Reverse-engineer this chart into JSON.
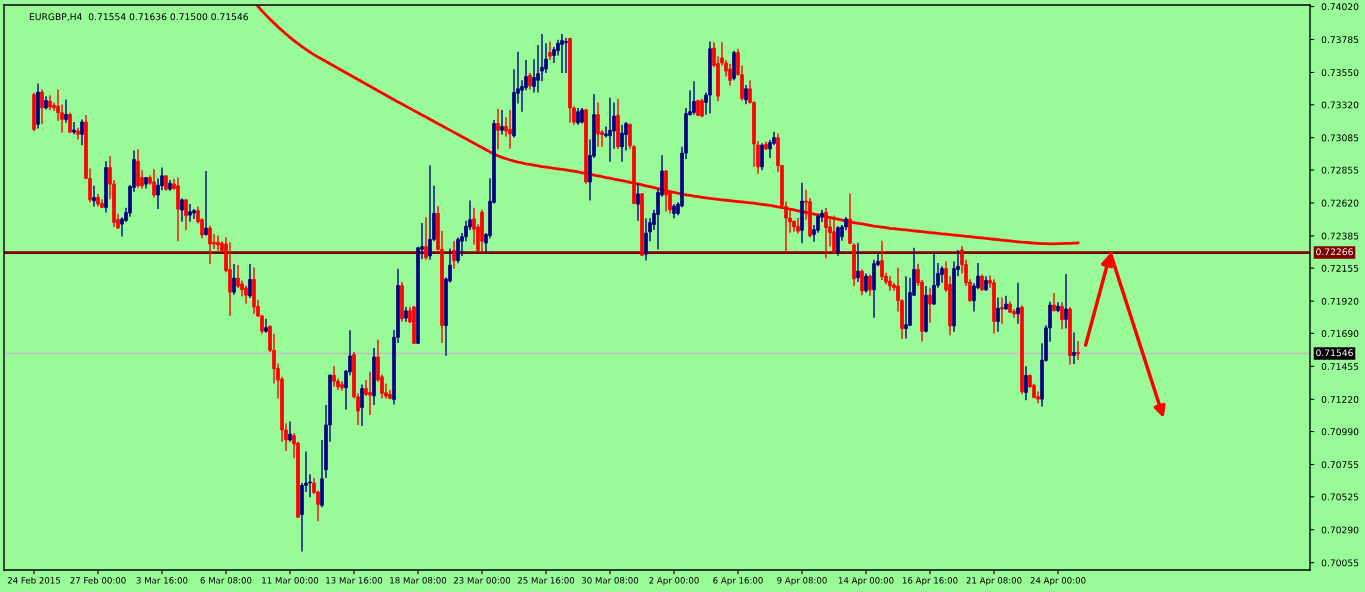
{
  "chart_data": {
    "type": "candlestick",
    "title": "EURGBP,H4  0.71554 0.71636 0.71500 0.71546",
    "categories": [
      "24 Feb 2015",
      null,
      null,
      null,
      null,
      null,
      null,
      null,
      null,
      null,
      null,
      null,
      null,
      null,
      null,
      null,
      "27 Feb 00:00",
      null,
      null,
      null,
      null,
      null,
      null,
      null,
      null,
      null,
      null,
      null,
      null,
      null,
      null,
      null,
      "3 Mar 16:00",
      null,
      null,
      null,
      null,
      null,
      null,
      null,
      null,
      null,
      null,
      null,
      null,
      null,
      null,
      null,
      "6 Mar 08:00",
      null,
      null,
      null,
      null,
      null,
      null,
      null,
      null,
      null,
      null,
      null,
      null,
      null,
      null,
      null,
      "11 Mar 00:00",
      null,
      null,
      null,
      null,
      null,
      null,
      null,
      null,
      null,
      null,
      null,
      null,
      null,
      null,
      null,
      "13 Mar 16:00",
      null,
      null,
      null,
      null,
      null,
      null,
      null,
      null,
      null,
      null,
      null,
      null,
      null,
      null,
      null,
      "18 Mar 08:00",
      null,
      null,
      null,
      null,
      null,
      null,
      null,
      null,
      null,
      null,
      null,
      null,
      null,
      null,
      null,
      "23 Mar 00:00",
      null,
      null,
      null,
      null,
      null,
      null,
      null,
      null,
      null,
      null,
      null,
      null,
      null,
      null,
      null,
      "25 Mar 16:00",
      null,
      null,
      null,
      null,
      null,
      null,
      null,
      null,
      null,
      null,
      null,
      null,
      null,
      null,
      null,
      "30 Mar 08:00",
      null,
      null,
      null,
      null,
      null,
      null,
      null,
      null,
      null,
      null,
      null,
      null,
      null,
      null,
      null,
      "2 Apr 00:00",
      null,
      null,
      null,
      null,
      null,
      null,
      null,
      null,
      null,
      null,
      null,
      null,
      null,
      null,
      null,
      "6 Apr 16:00",
      null,
      null,
      null,
      null,
      null,
      null,
      null,
      null,
      null,
      null,
      null,
      null,
      null,
      null,
      null,
      "9 Apr 08:00",
      null,
      null,
      null,
      null,
      null,
      null,
      null,
      null,
      null,
      null,
      null,
      null,
      null,
      null,
      null,
      "14 Apr 00:00",
      null,
      null,
      null,
      null,
      null,
      null,
      null,
      null,
      null,
      null,
      null,
      null,
      null,
      null,
      null,
      "16 Apr 16:00",
      null,
      null,
      null,
      null,
      null,
      null,
      null,
      null,
      null,
      null,
      null,
      null,
      null,
      null,
      null,
      "21 Apr 08:00",
      null,
      null,
      null,
      null,
      null,
      null,
      null,
      null,
      null,
      null,
      null,
      null,
      null,
      null,
      null,
      "24 Apr 00:00",
      null,
      null,
      null,
      null,
      null
    ],
    "ohlc": [
      [
        0.73393,
        0.73405,
        0.73133,
        0.73144
      ],
      [
        0.7318,
        0.73471,
        0.73151,
        0.7341
      ],
      [
        0.7341,
        0.73429,
        0.7318,
        0.73298
      ],
      [
        0.73298,
        0.73381,
        0.73286,
        0.7335
      ],
      [
        0.73346,
        0.73388,
        0.73282,
        0.73303
      ],
      [
        0.73315,
        0.73334,
        0.73275,
        0.73298
      ],
      [
        0.7331,
        0.73429,
        0.73204,
        0.73263
      ],
      [
        0.73263,
        0.73322,
        0.73121,
        0.73215
      ],
      [
        0.73215,
        0.73358,
        0.73192,
        0.73251
      ],
      [
        0.73251,
        0.73263,
        0.73121,
        0.73125
      ],
      [
        0.73125,
        0.73197,
        0.73109,
        0.7314
      ],
      [
        0.73133,
        0.73156,
        0.73073,
        0.73109
      ],
      [
        0.73109,
        0.73215,
        0.73031,
        0.73197
      ],
      [
        0.73197,
        0.73246,
        0.7279,
        0.72794
      ],
      [
        0.72794,
        0.72865,
        0.72624,
        0.72642
      ],
      [
        0.72635,
        0.72742,
        0.72595,
        0.72659
      ],
      [
        0.72659,
        0.72683,
        0.72595,
        0.72612
      ],
      [
        0.72616,
        0.72647,
        0.72583,
        0.72588
      ],
      [
        0.72588,
        0.72917,
        0.72552,
        0.72872
      ],
      [
        0.72872,
        0.72955,
        0.72647,
        0.72754
      ],
      [
        0.72754,
        0.72783,
        0.72446,
        0.72481
      ],
      [
        0.72501,
        0.72543,
        0.72434,
        0.72441
      ],
      [
        0.72469,
        0.72517,
        0.7238,
        0.72505
      ],
      [
        0.72494,
        0.72586,
        0.72486,
        0.72552
      ],
      [
        0.72548,
        0.72747,
        0.72522,
        0.72737
      ],
      [
        0.7273,
        0.72993,
        0.72699,
        0.7293
      ],
      [
        0.72917,
        0.73002,
        0.72728,
        0.72742
      ],
      [
        0.72801,
        0.72853,
        0.72723,
        0.72742
      ],
      [
        0.72754,
        0.72801,
        0.72723,
        0.72801
      ],
      [
        0.72801,
        0.72818,
        0.72749,
        0.72761
      ],
      [
        0.7277,
        0.7286,
        0.72659,
        0.72676
      ],
      [
        0.72676,
        0.72794,
        0.72576,
        0.72747
      ],
      [
        0.72742,
        0.72872,
        0.72711,
        0.72813
      ],
      [
        0.72813,
        0.72818,
        0.72706,
        0.72718
      ],
      [
        0.72718,
        0.72783,
        0.72706,
        0.72761
      ],
      [
        0.72754,
        0.7279,
        0.72713,
        0.72723
      ],
      [
        0.72742,
        0.72801,
        0.72347,
        0.72576
      ],
      [
        0.72569,
        0.72652,
        0.72486,
        0.72642
      ],
      [
        0.72642,
        0.72647,
        0.72427,
        0.72529
      ],
      [
        0.72533,
        0.72612,
        0.72486,
        0.72557
      ],
      [
        0.72548,
        0.72576,
        0.72505,
        0.72564
      ],
      [
        0.72564,
        0.72595,
        0.72474,
        0.72486
      ],
      [
        0.72501,
        0.7251,
        0.72368,
        0.72392
      ],
      [
        0.72394,
        0.72848,
        0.72387,
        0.72441
      ],
      [
        0.72441,
        0.72458,
        0.72185,
        0.72327
      ],
      [
        0.72339,
        0.72399,
        0.72292,
        0.72327
      ],
      [
        0.72339,
        0.72387,
        0.7228,
        0.72321
      ],
      [
        0.72332,
        0.72347,
        0.72268,
        0.7228
      ],
      [
        0.72327,
        0.72375,
        0.72126,
        0.72138
      ],
      [
        0.72145,
        0.72339,
        0.71814,
        0.71984
      ],
      [
        0.71984,
        0.72185,
        0.71965,
        0.72084
      ],
      [
        0.72084,
        0.72178,
        0.72013,
        0.72027
      ],
      [
        0.72043,
        0.72067,
        0.71953,
        0.72001
      ],
      [
        0.72013,
        0.72032,
        0.71901,
        0.71962
      ],
      [
        0.71958,
        0.72185,
        0.71942,
        0.72074
      ],
      [
        0.72074,
        0.72162,
        0.7183,
        0.71878
      ],
      [
        0.71882,
        0.7193,
        0.71806,
        0.71814
      ],
      [
        0.71814,
        0.71823,
        0.71688,
        0.71705
      ],
      [
        0.71705,
        0.71795,
        0.71695,
        0.71731
      ],
      [
        0.7174,
        0.71747,
        0.71558,
        0.7157
      ],
      [
        0.7157,
        0.71688,
        0.71333,
        0.71439
      ],
      [
        0.71439,
        0.71475,
        0.71226,
        0.71357
      ],
      [
        0.71364,
        0.7138,
        0.70918,
        0.71001
      ],
      [
        0.71001,
        0.71049,
        0.70852,
        0.7093
      ],
      [
        0.7093,
        0.71061,
        0.70918,
        0.70971
      ],
      [
        0.70961,
        0.70978,
        0.708,
        0.70902
      ],
      [
        0.70907,
        0.70918,
        0.70374,
        0.70379
      ],
      [
        0.70398,
        0.70623,
        0.70135,
        0.70606
      ],
      [
        0.70606,
        0.70847,
        0.70559,
        0.70623
      ],
      [
        0.70623,
        0.70686,
        0.70521,
        0.7063
      ],
      [
        0.70623,
        0.70658,
        0.70545,
        0.70556
      ],
      [
        0.70559,
        0.70568,
        0.7035,
        0.70471
      ],
      [
        0.70464,
        0.7093,
        0.7045,
        0.70653
      ],
      [
        0.70717,
        0.71179,
        0.70658,
        0.71037
      ],
      [
        0.71037,
        0.71397,
        0.70918,
        0.71392
      ],
      [
        0.71392,
        0.71458,
        0.71309,
        0.71349
      ],
      [
        0.71349,
        0.71368,
        0.71286,
        0.71309
      ],
      [
        0.71326,
        0.71349,
        0.71281,
        0.71302
      ],
      [
        0.71302,
        0.71428,
        0.71148,
        0.7142
      ],
      [
        0.71416,
        0.71712,
        0.71392,
        0.71529
      ],
      [
        0.71539,
        0.71558,
        0.71226,
        0.71238
      ],
      [
        0.71238,
        0.71262,
        0.71037,
        0.71136
      ],
      [
        0.71162,
        0.71326,
        0.7103,
        0.71297
      ],
      [
        0.71297,
        0.71357,
        0.71243,
        0.71255
      ],
      [
        0.71269,
        0.71416,
        0.71108,
        0.7125
      ],
      [
        0.71245,
        0.71586,
        0.71179,
        0.71522
      ],
      [
        0.71522,
        0.71645,
        0.71345,
        0.71357
      ],
      [
        0.7138,
        0.71397,
        0.71226,
        0.71262
      ],
      [
        0.71267,
        0.71333,
        0.71226,
        0.71243
      ],
      [
        0.71255,
        0.71286,
        0.7122,
        0.71226
      ],
      [
        0.71219,
        0.71714,
        0.71182,
        0.71662
      ],
      [
        0.71662,
        0.7215,
        0.71622,
        0.72031
      ],
      [
        0.72031,
        0.72057,
        0.71772,
        0.71794
      ],
      [
        0.71799,
        0.71878,
        0.71772,
        0.71851
      ],
      [
        0.71851,
        0.71878,
        0.71762,
        0.71772
      ],
      [
        0.71878,
        0.71886,
        0.71614,
        0.71619
      ],
      [
        0.71619,
        0.72308,
        0.71614,
        0.723
      ],
      [
        0.72289,
        0.72477,
        0.72221,
        0.72308
      ],
      [
        0.72308,
        0.72518,
        0.72215,
        0.72229
      ],
      [
        0.72242,
        0.72888,
        0.72215,
        0.7236
      ],
      [
        0.7236,
        0.72743,
        0.72347,
        0.72545
      ],
      [
        0.72545,
        0.72598,
        0.72281,
        0.72289
      ],
      [
        0.72289,
        0.72421,
        0.71622,
        0.71746
      ],
      [
        0.71746,
        0.72089,
        0.7153,
        0.72078
      ],
      [
        0.72063,
        0.72295,
        0.72052,
        0.72176
      ],
      [
        0.72281,
        0.72347,
        0.7215,
        0.72208
      ],
      [
        0.72208,
        0.72374,
        0.72189,
        0.7236
      ],
      [
        0.72347,
        0.72405,
        0.72242,
        0.72379
      ],
      [
        0.72379,
        0.72492,
        0.72347,
        0.72453
      ],
      [
        0.72448,
        0.72637,
        0.72427,
        0.725
      ],
      [
        0.72506,
        0.72585,
        0.72321,
        0.72432
      ],
      [
        0.72448,
        0.72466,
        0.72268,
        0.72281
      ],
      [
        0.72555,
        0.72571,
        0.72268,
        0.72347
      ],
      [
        0.72334,
        0.72405,
        0.72268,
        0.72395
      ],
      [
        0.72387,
        0.72796,
        0.72368,
        0.72632
      ],
      [
        0.72624,
        0.73212,
        0.72616,
        0.73186
      ],
      [
        0.73186,
        0.73291,
        0.73001,
        0.73138
      ],
      [
        0.73138,
        0.73283,
        0.73107,
        0.73165
      ],
      [
        0.73165,
        0.73231,
        0.73091,
        0.73133
      ],
      [
        0.73144,
        0.73283,
        0.73007,
        0.73112
      ],
      [
        0.73099,
        0.73573,
        0.73086,
        0.73407
      ],
      [
        0.73402,
        0.73697,
        0.73328,
        0.73434
      ],
      [
        0.73423,
        0.73494,
        0.7327,
        0.7345
      ],
      [
        0.73442,
        0.73639,
        0.73423,
        0.73521
      ],
      [
        0.73529,
        0.73547,
        0.73428,
        0.73455
      ],
      [
        0.7345,
        0.73645,
        0.73407,
        0.73514
      ],
      [
        0.73494,
        0.73745,
        0.73407,
        0.73541
      ],
      [
        0.7356,
        0.73824,
        0.73487,
        0.73587
      ],
      [
        0.73574,
        0.73758,
        0.73547,
        0.73645
      ],
      [
        0.73692,
        0.73771,
        0.73639,
        0.73666
      ],
      [
        0.73671,
        0.73732,
        0.73618,
        0.73713
      ],
      [
        0.73705,
        0.73784,
        0.73671,
        0.73758
      ],
      [
        0.7375,
        0.73824,
        0.73547,
        0.73777
      ],
      [
        0.73763,
        0.73798,
        0.73547,
        0.73771
      ],
      [
        0.73792,
        0.73798,
        0.73191,
        0.73297
      ],
      [
        0.73297,
        0.7331,
        0.73178,
        0.73196
      ],
      [
        0.73191,
        0.73297,
        0.73178,
        0.7327
      ],
      [
        0.73196,
        0.73297,
        0.73186,
        0.73283
      ],
      [
        0.73283,
        0.73291,
        0.72756,
        0.72769
      ],
      [
        0.72769,
        0.73072,
        0.72637,
        0.72959
      ],
      [
        0.72954,
        0.73397,
        0.72941,
        0.73249
      ],
      [
        0.73249,
        0.73336,
        0.7302,
        0.73112
      ],
      [
        0.73125,
        0.73138,
        0.7302,
        0.73107
      ],
      [
        0.73099,
        0.73165,
        0.73086,
        0.73112
      ],
      [
        0.73099,
        0.7337,
        0.72914,
        0.73138
      ],
      [
        0.73133,
        0.73336,
        0.73007,
        0.73239
      ],
      [
        0.73244,
        0.73363,
        0.73007,
        0.7302
      ],
      [
        0.7302,
        0.73178,
        0.72914,
        0.73117
      ],
      [
        0.73107,
        0.73196,
        0.72993,
        0.73186
      ],
      [
        0.73178,
        0.73186,
        0.73007,
        0.73028
      ],
      [
        0.7302,
        0.73033,
        0.72611,
        0.72616
      ],
      [
        0.72611,
        0.72756,
        0.72492,
        0.72685
      ],
      [
        0.72685,
        0.7269,
        0.72242,
        0.72247
      ],
      [
        0.72255,
        0.72511,
        0.7221,
        0.72405
      ],
      [
        0.72413,
        0.72511,
        0.72347,
        0.72479
      ],
      [
        0.72466,
        0.72571,
        0.72427,
        0.72545
      ],
      [
        0.72537,
        0.72716,
        0.72289,
        0.72695
      ],
      [
        0.72677,
        0.72959,
        0.72664,
        0.72848
      ],
      [
        0.72848,
        0.72854,
        0.72558,
        0.72677
      ],
      [
        0.7269,
        0.72703,
        0.72545,
        0.72571
      ],
      [
        0.72545,
        0.72611,
        0.72511,
        0.72598
      ],
      [
        0.72545,
        0.72624,
        0.72532,
        0.72611
      ],
      [
        0.72598,
        0.7302,
        0.7259,
        0.72975
      ],
      [
        0.72975,
        0.73297,
        0.72933,
        0.73257
      ],
      [
        0.73249,
        0.73423,
        0.73244,
        0.7327
      ],
      [
        0.73265,
        0.73487,
        0.73249,
        0.73344
      ],
      [
        0.73349,
        0.73355,
        0.73239,
        0.73244
      ],
      [
        0.73349,
        0.73363,
        0.73231,
        0.73239
      ],
      [
        0.73336,
        0.73407,
        0.73249,
        0.73389
      ],
      [
        0.73389,
        0.73771,
        0.73257,
        0.73719
      ],
      [
        0.73724,
        0.73766,
        0.73587,
        0.736
      ],
      [
        0.73613,
        0.73666,
        0.73344,
        0.73381
      ],
      [
        0.73653,
        0.73766,
        0.736,
        0.73618
      ],
      [
        0.73618,
        0.73639,
        0.73521,
        0.7356
      ],
      [
        0.73574,
        0.73613,
        0.73455,
        0.73494
      ],
      [
        0.73508,
        0.73705,
        0.73494,
        0.73692
      ],
      [
        0.73692,
        0.73719,
        0.73529,
        0.73534
      ],
      [
        0.73534,
        0.736,
        0.73349,
        0.73363
      ],
      [
        0.73355,
        0.7346,
        0.73323,
        0.73434
      ],
      [
        0.73434,
        0.73494,
        0.73328,
        0.73336
      ],
      [
        0.73336,
        0.73345,
        0.72877,
        0.7304
      ],
      [
        0.73033,
        0.73061,
        0.72828,
        0.72877
      ],
      [
        0.72877,
        0.73045,
        0.72853,
        0.73033
      ],
      [
        0.73038,
        0.73057,
        0.72998,
        0.73005
      ],
      [
        0.73005,
        0.73068,
        0.7294,
        0.7305
      ],
      [
        0.73045,
        0.73127,
        0.73033,
        0.73085
      ],
      [
        0.73085,
        0.73115,
        0.72842,
        0.72886
      ],
      [
        0.72886,
        0.72893,
        0.72589,
        0.72601
      ],
      [
        0.72594,
        0.72631,
        0.72266,
        0.72512
      ],
      [
        0.72512,
        0.72577,
        0.72407,
        0.72484
      ],
      [
        0.72489,
        0.72496,
        0.72414,
        0.72449
      ],
      [
        0.72452,
        0.72512,
        0.72402,
        0.72419
      ],
      [
        0.72425,
        0.72764,
        0.72332,
        0.72633
      ],
      [
        0.72633,
        0.72713,
        0.725,
        0.72624
      ],
      [
        0.72629,
        0.72655,
        0.72374,
        0.72385
      ],
      [
        0.72395,
        0.72462,
        0.72344,
        0.7243
      ],
      [
        0.72425,
        0.72538,
        0.72407,
        0.72524
      ],
      [
        0.72519,
        0.72571,
        0.72484,
        0.72547
      ],
      [
        0.72554,
        0.72584,
        0.72226,
        0.72444
      ],
      [
        0.72449,
        0.72519,
        0.72309,
        0.72407
      ],
      [
        0.72414,
        0.72531,
        0.72262,
        0.72266
      ],
      [
        0.72266,
        0.72454,
        0.72243,
        0.72444
      ],
      [
        0.72379,
        0.72462,
        0.72351,
        0.72449
      ],
      [
        0.72449,
        0.72519,
        0.72425,
        0.72505
      ],
      [
        0.72505,
        0.72687,
        0.72327,
        0.72332
      ],
      [
        0.7232,
        0.72332,
        0.72028,
        0.72079
      ],
      [
        0.72087,
        0.72336,
        0.72056,
        0.72133
      ],
      [
        0.72133,
        0.72145,
        0.71962,
        0.71993
      ],
      [
        0.71993,
        0.72117,
        0.71981,
        0.72098
      ],
      [
        0.72098,
        0.7211,
        0.71958,
        0.72
      ],
      [
        0.72,
        0.72215,
        0.71801,
        0.72187
      ],
      [
        0.7218,
        0.72262,
        0.72168,
        0.72203
      ],
      [
        0.72208,
        0.72351,
        0.7207,
        0.72094
      ],
      [
        0.72098,
        0.72122,
        0.7204,
        0.72056
      ],
      [
        0.72063,
        0.72098,
        0.71993,
        0.72028
      ],
      [
        0.72035,
        0.72051,
        0.71993,
        0.72016
      ],
      [
        0.72028,
        0.72157,
        0.71846,
        0.71923
      ],
      [
        0.71923,
        0.71934,
        0.71649,
        0.71724
      ],
      [
        0.71724,
        0.72098,
        0.71654,
        0.71752
      ],
      [
        0.71747,
        0.72087,
        0.71743,
        0.71981
      ],
      [
        0.71962,
        0.72301,
        0.71958,
        0.72145
      ],
      [
        0.72145,
        0.72187,
        0.72028,
        0.72051
      ],
      [
        0.72056,
        0.7207,
        0.71632,
        0.71705
      ],
      [
        0.71705,
        0.72028,
        0.71696,
        0.71962
      ],
      [
        0.71962,
        0.72016,
        0.71766,
        0.71899
      ],
      [
        0.71899,
        0.72266,
        0.71892,
        0.72033
      ],
      [
        0.72033,
        0.72192,
        0.72016,
        0.72117
      ],
      [
        0.7211,
        0.72168,
        0.72051,
        0.72152
      ],
      [
        0.72152,
        0.72203,
        0.71986,
        0.72
      ],
      [
        0.7204,
        0.72098,
        0.71677,
        0.71743
      ],
      [
        0.71743,
        0.72203,
        0.71701,
        0.72152
      ],
      [
        0.72145,
        0.72285,
        0.72098,
        0.72168
      ],
      [
        0.72285,
        0.72313,
        0.72117,
        0.7218
      ],
      [
        0.7218,
        0.72215,
        0.72028,
        0.72051
      ],
      [
        0.72056,
        0.72075,
        0.71916,
        0.71923
      ],
      [
        0.71923,
        0.72047,
        0.71846,
        0.72028
      ],
      [
        0.72016,
        0.72192,
        0.72004,
        0.72098
      ],
      [
        0.72098,
        0.7211,
        0.71993,
        0.72
      ],
      [
        0.72,
        0.72098,
        0.71993,
        0.72068
      ],
      [
        0.72068,
        0.72103,
        0.72016,
        0.72047
      ],
      [
        0.72051,
        0.72075,
        0.71689,
        0.71775
      ],
      [
        0.71775,
        0.71946,
        0.71701,
        0.71869
      ],
      [
        0.71874,
        0.71946,
        0.71759,
        0.71864
      ],
      [
        0.71864,
        0.71958,
        0.7186,
        0.71899
      ],
      [
        0.71899,
        0.71916,
        0.71836,
        0.71841
      ],
      [
        0.71846,
        0.71864,
        0.71801,
        0.71829
      ],
      [
        0.71829,
        0.72051,
        0.71759,
        0.71871
      ],
      [
        0.71876,
        0.71888,
        0.71256,
        0.71275
      ],
      [
        0.71268,
        0.71455,
        0.71214,
        0.7139
      ],
      [
        0.7139,
        0.71397,
        0.71303,
        0.71308
      ],
      [
        0.7132,
        0.71331,
        0.71228,
        0.71233
      ],
      [
        0.71238,
        0.71275,
        0.71191,
        0.71221
      ],
      [
        0.71221,
        0.71619,
        0.71168,
        0.71499
      ],
      [
        0.71497,
        0.71747,
        0.7149,
        0.71729
      ],
      [
        0.71729,
        0.71916,
        0.71631,
        0.71892
      ],
      [
        0.71892,
        0.71977,
        0.71846,
        0.71853
      ],
      [
        0.71853,
        0.71911,
        0.71841,
        0.71883
      ],
      [
        0.71883,
        0.71911,
        0.71719,
        0.71787
      ],
      [
        0.7179,
        0.72114,
        0.71724,
        0.71864
      ],
      [
        0.71864,
        0.71876,
        0.71467,
        0.71532
      ],
      [
        0.71532,
        0.71696,
        0.71472,
        0.71554
      ],
      [
        0.71554,
        0.71636,
        0.715,
        0.71546
      ]
    ],
    "colors": [
      "#ff0000",
      "#000080",
      "#ff0000",
      "#000080",
      "#ff0000",
      "#ff0000",
      "#ff0000",
      "#ff0000",
      "#000080",
      "#ff0000",
      "#000080",
      "#ff0000",
      "#000080",
      "#ff0000",
      "#ff0000",
      "#000080",
      "#ff0000",
      "#ff0000",
      "#000080",
      "#ff0000",
      "#ff0000",
      "#ff0000",
      "#000080",
      "#000080",
      "#000080",
      "#000080",
      "#ff0000",
      "#ff0000",
      "#000080",
      "#ff0000",
      "#ff0000",
      "#000080",
      "#000080",
      "#ff0000",
      "#000080",
      "#ff0000",
      "#ff0000",
      "#000080",
      "#ff0000",
      "#000080",
      "#000080",
      "#ff0000",
      "#ff0000",
      "#000080",
      "#ff0000",
      "#ff0000",
      "#ff0000",
      "#ff0000",
      "#ff0000",
      "#ff0000",
      "#000080",
      "#ff0000",
      "#ff0000",
      "#ff0000",
      "#000080",
      "#ff0000",
      "#ff0000",
      "#ff0000",
      "#000080",
      "#ff0000",
      "#ff0000",
      "#ff0000",
      "#ff0000",
      "#ff0000",
      "#000080",
      "#ff0000",
      "#ff0000",
      "#000080",
      "#000080",
      "#000080",
      "#ff0000",
      "#ff0000",
      "#000080",
      "#000080",
      "#000080",
      "#ff0000",
      "#ff0000",
      "#ff0000",
      "#000080",
      "#000080",
      "#ff0000",
      "#ff0000",
      "#000080",
      "#ff0000",
      "#ff0000",
      "#000080",
      "#ff0000",
      "#ff0000",
      "#ff0000",
      "#ff0000",
      "#000080",
      "#000080",
      "#ff0000",
      "#000080",
      "#ff0000",
      "#ff0000",
      "#000080",
      "#000080",
      "#ff0000",
      "#000080",
      "#000080",
      "#ff0000",
      "#ff0000",
      "#000080",
      "#000080",
      "#ff0000",
      "#000080",
      "#000080",
      "#000080",
      "#000080",
      "#ff0000",
      "#ff0000",
      "#ff0000",
      "#000080",
      "#000080",
      "#000080",
      "#ff0000",
      "#000080",
      "#ff0000",
      "#ff0000",
      "#000080",
      "#000080",
      "#000080",
      "#000080",
      "#ff0000",
      "#000080",
      "#000080",
      "#000080",
      "#000080",
      "#ff0000",
      "#000080",
      "#000080",
      "#000080",
      "#000080",
      "#ff0000",
      "#ff0000",
      "#000080",
      "#000080",
      "#ff0000",
      "#000080",
      "#000080",
      "#ff0000",
      "#ff0000",
      "#000080",
      "#000080",
      "#000080",
      "#ff0000",
      "#000080",
      "#000080",
      "#ff0000",
      "#ff0000",
      "#000080",
      "#ff0000",
      "#000080",
      "#000080",
      "#000080",
      "#000080",
      "#000080",
      "#ff0000",
      "#ff0000",
      "#000080",
      "#000080",
      "#000080",
      "#000080",
      "#000080",
      "#000080",
      "#ff0000",
      "#ff0000",
      "#000080",
      "#000080",
      "#ff0000",
      "#ff0000",
      "#ff0000",
      "#ff0000",
      "#ff0000",
      "#000080",
      "#ff0000",
      "#ff0000",
      "#000080",
      "#ff0000",
      "#ff0000",
      "#ff0000",
      "#000080",
      "#ff0000",
      "#000080",
      "#000080",
      "#ff0000",
      "#ff0000",
      "#ff0000",
      "#ff0000",
      "#ff0000",
      "#ff0000",
      "#000080",
      "#ff0000",
      "#ff0000",
      "#000080",
      "#000080",
      "#000080",
      "#ff0000",
      "#ff0000",
      "#ff0000",
      "#000080",
      "#000080",
      "#000080",
      "#ff0000",
      "#ff0000",
      "#000080",
      "#ff0000",
      "#000080",
      "#ff0000",
      "#000080",
      "#000080",
      "#ff0000",
      "#ff0000",
      "#ff0000",
      "#ff0000",
      "#ff0000",
      "#ff0000",
      "#000080",
      "#000080",
      "#000080",
      "#ff0000",
      "#ff0000",
      "#000080",
      "#ff0000",
      "#000080",
      "#000080",
      "#000080",
      "#ff0000",
      "#ff0000",
      "#000080",
      "#000080",
      "#ff0000",
      "#ff0000",
      "#ff0000",
      "#000080",
      "#000080",
      "#ff0000",
      "#000080",
      "#ff0000",
      "#ff0000",
      "#000080",
      "#ff0000",
      "#000080",
      "#ff0000",
      "#ff0000",
      "#000080",
      "#ff0000",
      "#000080",
      "#ff0000",
      "#ff0000",
      "#ff0000",
      "#000080",
      "#000080",
      "#000080",
      "#ff0000",
      "#000080",
      "#ff0000",
      "#000080",
      "#ff0000",
      "#000080",
      "#ff0000"
    ],
    "series": [
      {
        "type": "line",
        "color": "#ff0000",
        "values": [
          null,
          null,
          null,
          null,
          null,
          null,
          null,
          null,
          null,
          null,
          null,
          null,
          null,
          null,
          null,
          null,
          null,
          null,
          null,
          null,
          null,
          null,
          null,
          null,
          null,
          null,
          null,
          null,
          null,
          null,
          null,
          null,
          null,
          null,
          null,
          null,
          null,
          null,
          null,
          null,
          null,
          null,
          null,
          null,
          null,
          null,
          null,
          null,
          null,
          null,
          null,
          null,
          null,
          null,
          null,
          null,
          0.7402,
          0.73989,
          0.73959,
          0.7393,
          0.73902,
          0.73875,
          0.73849,
          0.73824,
          0.738,
          0.73777,
          0.73755,
          0.73734,
          0.73714,
          0.73695,
          0.73677,
          0.7366,
          0.73644,
          0.73628,
          0.73612,
          0.73596,
          0.7358,
          0.73564,
          0.73548,
          0.73532,
          0.73516,
          0.735,
          0.73484,
          0.73468,
          0.73452,
          0.73436,
          0.7342,
          0.73404,
          0.73388,
          0.73372,
          0.73356,
          0.7334,
          0.73325,
          0.73309,
          0.73294,
          0.73278,
          0.73263,
          0.73247,
          0.73232,
          0.73216,
          0.73201,
          0.73185,
          0.7317,
          0.73154,
          0.73139,
          0.73123,
          0.73108,
          0.73092,
          0.73077,
          0.73061,
          0.73046,
          0.7303,
          0.73015,
          0.72999,
          0.72984,
          0.72968,
          0.72956,
          0.72945,
          0.72935,
          0.72926,
          0.72918,
          0.72911,
          0.72905,
          0.72899,
          0.72894,
          0.72889,
          0.72884,
          0.72879,
          0.72875,
          0.72871,
          0.72867,
          0.72863,
          0.72859,
          0.72855,
          0.72851,
          0.72847,
          0.72841,
          0.72835,
          0.72829,
          0.72823,
          0.72818,
          0.72812,
          0.72807,
          0.72801,
          0.72796,
          0.7279,
          0.72785,
          0.72779,
          0.72773,
          0.72767,
          0.72761,
          0.72755,
          0.72749,
          0.72742,
          0.72736,
          0.72729,
          0.72722,
          0.72715,
          0.72708,
          0.72701,
          0.72695,
          0.72689,
          0.72683,
          0.72678,
          0.72673,
          0.72668,
          0.72664,
          0.7266,
          0.72656,
          0.72652,
          0.72648,
          0.72645,
          0.72642,
          0.72639,
          0.72636,
          0.72633,
          0.7263,
          0.72627,
          0.72624,
          0.72621,
          0.72618,
          0.72614,
          0.7261,
          0.72606,
          0.72602,
          0.72597,
          0.72592,
          0.72587,
          0.72582,
          0.72576,
          0.7257,
          0.72564,
          0.72558,
          0.72552,
          0.72546,
          0.7254,
          0.72534,
          0.72528,
          0.72522,
          0.72516,
          0.7251,
          0.72504,
          0.72498,
          0.72492,
          0.72486,
          0.7248,
          0.72475,
          0.7247,
          0.72465,
          0.7246,
          0.72455,
          0.72451,
          0.72447,
          0.72443,
          0.72439,
          0.72436,
          0.72433,
          0.7243,
          0.72427,
          0.72424,
          0.72421,
          0.72418,
          0.72415,
          0.72412,
          0.72409,
          0.72406,
          0.72403,
          0.724,
          0.72397,
          0.72394,
          0.72391,
          0.72388,
          0.72385,
          0.72382,
          0.72379,
          0.72376,
          0.72373,
          0.7237,
          0.72367,
          0.72364,
          0.72361,
          0.72358,
          0.72355,
          0.72352,
          0.72349,
          0.72346,
          0.72343,
          0.7234,
          0.72338,
          0.72336,
          0.72334,
          0.72332,
          0.7233,
          0.72329,
          0.72328,
          0.72328,
          0.72329,
          0.7233,
          0.72331,
          0.72332,
          0.72333,
          0.72334
        ]
      }
    ],
    "ylim": [
      0.70003,
      0.74031
    ],
    "yticks": [
      0.70055,
      {
        "value": 0.7029,
        "label": "0.70290"
      },
      0.70525,
      0.70755,
      {
        "value": 0.7099,
        "label": "0.70990"
      },
      {
        "value": 0.7122,
        "label": "0.71220"
      },
      0.71455,
      {
        "value": 0.7169,
        "label": "0.71690"
      },
      {
        "value": 0.7192,
        "label": "0.71920"
      },
      0.72155,
      0.72385,
      {
        "value": 0.7262,
        "label": "0.72620"
      },
      0.72855,
      0.73085,
      {
        "value": 0.7332,
        "label": "0.73320"
      },
      {
        "value": 0.7355,
        "label": "0.73550"
      },
      0.73785,
      {
        "value": 0.7402,
        "label": "0.74020"
      }
    ],
    "ref_lines": [
      {
        "axis": "y",
        "value": 0.72266,
        "label": "0.72266",
        "color": "#800000"
      },
      {
        "axis": "y",
        "value": 0.71546,
        "label": "0.71546",
        "color": "#c0c0c0"
      }
    ],
    "grid": false
  }
}
